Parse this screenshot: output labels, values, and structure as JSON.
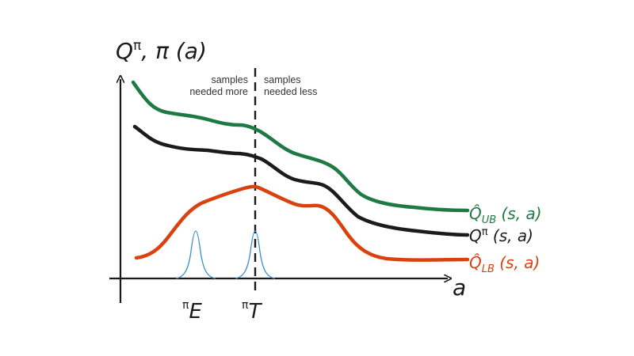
{
  "y_axis_label": {
    "base": "Q",
    "sup": "π",
    "rest": ", π (a)"
  },
  "x_axis_label": "a",
  "regions": {
    "left": [
      "samples",
      "needed more"
    ],
    "right": [
      "samples",
      "needed less"
    ]
  },
  "curves": [
    {
      "id": "ub",
      "label_base": "Q̂",
      "label_sub": "UB",
      "label_rest": " (s, a)",
      "color": "#1e7a43"
    },
    {
      "id": "q",
      "label_base": "Q",
      "label_sup": "π",
      "label_rest": " (s, a)",
      "color": "#1b1b1b"
    },
    {
      "id": "lb",
      "label_base": "Q̂",
      "label_sub": "LB",
      "label_rest": " (s, a)",
      "color": "#d9420f"
    }
  ],
  "x_markers": [
    {
      "id": "E",
      "sup": "π",
      "letter": "E"
    },
    {
      "id": "T",
      "sup": "π",
      "letter": "T"
    }
  ],
  "colors": {
    "axis": "#1a1a1a",
    "policy": "#3a8fc7",
    "divider": "#1a1a1a"
  }
}
